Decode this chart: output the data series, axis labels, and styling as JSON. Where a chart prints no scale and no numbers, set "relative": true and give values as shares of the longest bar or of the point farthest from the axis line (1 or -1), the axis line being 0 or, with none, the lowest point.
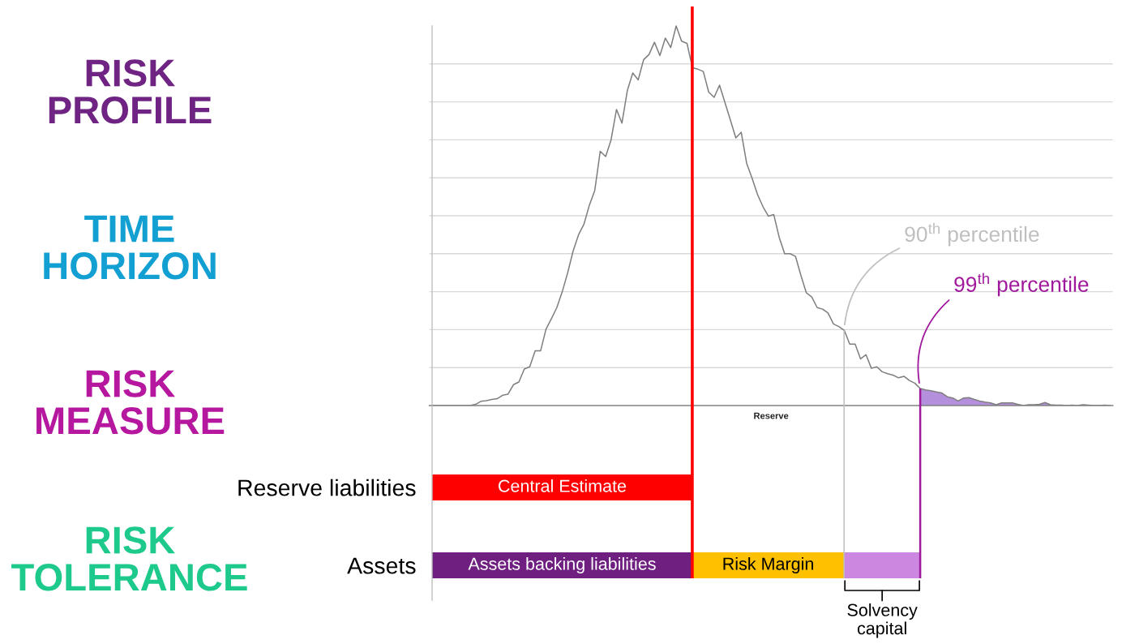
{
  "chart_data": [
    {
      "type": "line",
      "relative": true,
      "xlabel": "Reserve",
      "categories": [
        null,
        null,
        null,
        null,
        null,
        null,
        null,
        null,
        null,
        null,
        null,
        null,
        null,
        null,
        null,
        null,
        null,
        null,
        null,
        null,
        null,
        null,
        null,
        null,
        null,
        null,
        null,
        null,
        null,
        null,
        null,
        null,
        null,
        null,
        null,
        null,
        null,
        null,
        null,
        null,
        null,
        null,
        null,
        null,
        null,
        null,
        null,
        null,
        null,
        null,
        null,
        null,
        null,
        null,
        null,
        null,
        null,
        null,
        null,
        null,
        null,
        null,
        null,
        null,
        null,
        null,
        null,
        null,
        null,
        null,
        null,
        null,
        null,
        null,
        null,
        null,
        null,
        null,
        null,
        null,
        null,
        null,
        null,
        null,
        null,
        null,
        null,
        null,
        null,
        null,
        null,
        null,
        null,
        null,
        null,
        null,
        null,
        null,
        null,
        null,
        null,
        null,
        null,
        null,
        null,
        null,
        null,
        null,
        null,
        null,
        null,
        null,
        null,
        null,
        null,
        null,
        null,
        null,
        null,
        null,
        null,
        null,
        null,
        null,
        null,
        null
      ],
      "series": [
        {
          "color": "#7f7f7f",
          "values": [
            0,
            0,
            0,
            0,
            0,
            0,
            0,
            0,
            0.003,
            0.011,
            0.013,
            0.016,
            0.018,
            0.027,
            0.03,
            0.055,
            0.062,
            0.096,
            0.102,
            0.144,
            0.144,
            0.201,
            0.229,
            0.258,
            0.3,
            0.35,
            0.407,
            0.45,
            0.478,
            0.528,
            0.567,
            0.67,
            0.656,
            0.7,
            0.78,
            0.744,
            0.83,
            0.876,
            0.858,
            0.911,
            0.925,
            0.957,
            0.922,
            0.968,
            0.943,
            1,
            0.96,
            0.954,
            0.89,
            0.886,
            0.88,
            0.826,
            0.812,
            0.844,
            0.798,
            0.752,
            0.705,
            0.72,
            0.638,
            0.599,
            0.556,
            0.524,
            0.499,
            0.503,
            0.443,
            0.4,
            0.4,
            0.393,
            0.343,
            0.297,
            0.286,
            0.258,
            0.254,
            0.244,
            0.215,
            0.208,
            0.198,
            0.162,
            0.162,
            0.123,
            0.134,
            0.098,
            0.102,
            0.089,
            0.084,
            0.08,
            0.073,
            0.077,
            0.066,
            0.059,
            0.045,
            0.041,
            0.039,
            0.036,
            0.033,
            0.023,
            0.02,
            0.012,
            0.02,
            0.021,
            0.016,
            0.012,
            0.009,
            0.007,
            0.002,
            0.007,
            0.007,
            0.007,
            0.003,
            0,
            0.002,
            0.002,
            0.003,
            0.008,
            0.002,
            0.001,
            0.001,
            0,
            0.001,
            0,
            0.002,
            0.001,
            0,
            0,
            0.001,
            0
          ]
        },
        {
          "type": "area",
          "color": "#b48fdb",
          "values": [
            null,
            null,
            null,
            null,
            null,
            null,
            null,
            null,
            null,
            null,
            null,
            null,
            null,
            null,
            null,
            null,
            null,
            null,
            null,
            null,
            null,
            null,
            null,
            null,
            null,
            null,
            null,
            null,
            null,
            null,
            null,
            null,
            null,
            null,
            null,
            null,
            null,
            null,
            null,
            null,
            null,
            null,
            null,
            null,
            null,
            null,
            null,
            null,
            null,
            null,
            null,
            null,
            null,
            null,
            null,
            null,
            null,
            null,
            null,
            null,
            null,
            null,
            null,
            null,
            null,
            null,
            null,
            null,
            null,
            null,
            null,
            null,
            null,
            null,
            null,
            null,
            null,
            null,
            null,
            null,
            null,
            null,
            null,
            null,
            null,
            null,
            null,
            null,
            null,
            null,
            0.045,
            0.041,
            0.039,
            0.036,
            0.033,
            0.023,
            0.02,
            0.012,
            0.02,
            0.021,
            0.016,
            0.012,
            0.009,
            0.007,
            0.002,
            0.007,
            0.007,
            0.007,
            0.003,
            0,
            0.002,
            0.002,
            0.003,
            0.008,
            0.002,
            0.001,
            0.001,
            0,
            0.001,
            0,
            0.002,
            0.001,
            0,
            0,
            0.001,
            0
          ]
        }
      ],
      "grid": "y",
      "tick_labels": false,
      "annotations": [
        "RISK\nPROFILE",
        "TIME\nHORIZON",
        "RISK\nMEASURE",
        "RISK\nTOLERANCE"
      ]
    },
    {
      "type": "bar",
      "orientation": "horizontal",
      "stacked": true,
      "relative": true,
      "categories": [
        "Reserve liabilities",
        "Assets"
      ],
      "series": [
        {
          "name": "Central Estimate",
          "color": "#ff0000",
          "values": [
            0.533,
            null
          ]
        },
        {
          "name": "Assets backing liabilities",
          "color": "#6f1f80",
          "values": [
            null,
            0.533
          ]
        },
        {
          "name": "Risk Margin",
          "color": "#ffc000",
          "values": [
            null,
            0.311
          ]
        },
        {
          "name": "Solvency\ncapital",
          "color": "#cc88e0",
          "values": [
            null,
            0.156
          ]
        }
      ],
      "ref_lines": [
        {
          "axis": "x",
          "value": 0.533,
          "color": "#ff0000"
        },
        {
          "axis": "x",
          "value": 0.844,
          "label": "90$^{th}$ percentile",
          "color": "#bfbfbf"
        },
        {
          "axis": "x",
          "value": 1,
          "label": "99$^{th}$ percentile",
          "color": "#a0189c"
        }
      ],
      "tick_labels": "y"
    }
  ]
}
